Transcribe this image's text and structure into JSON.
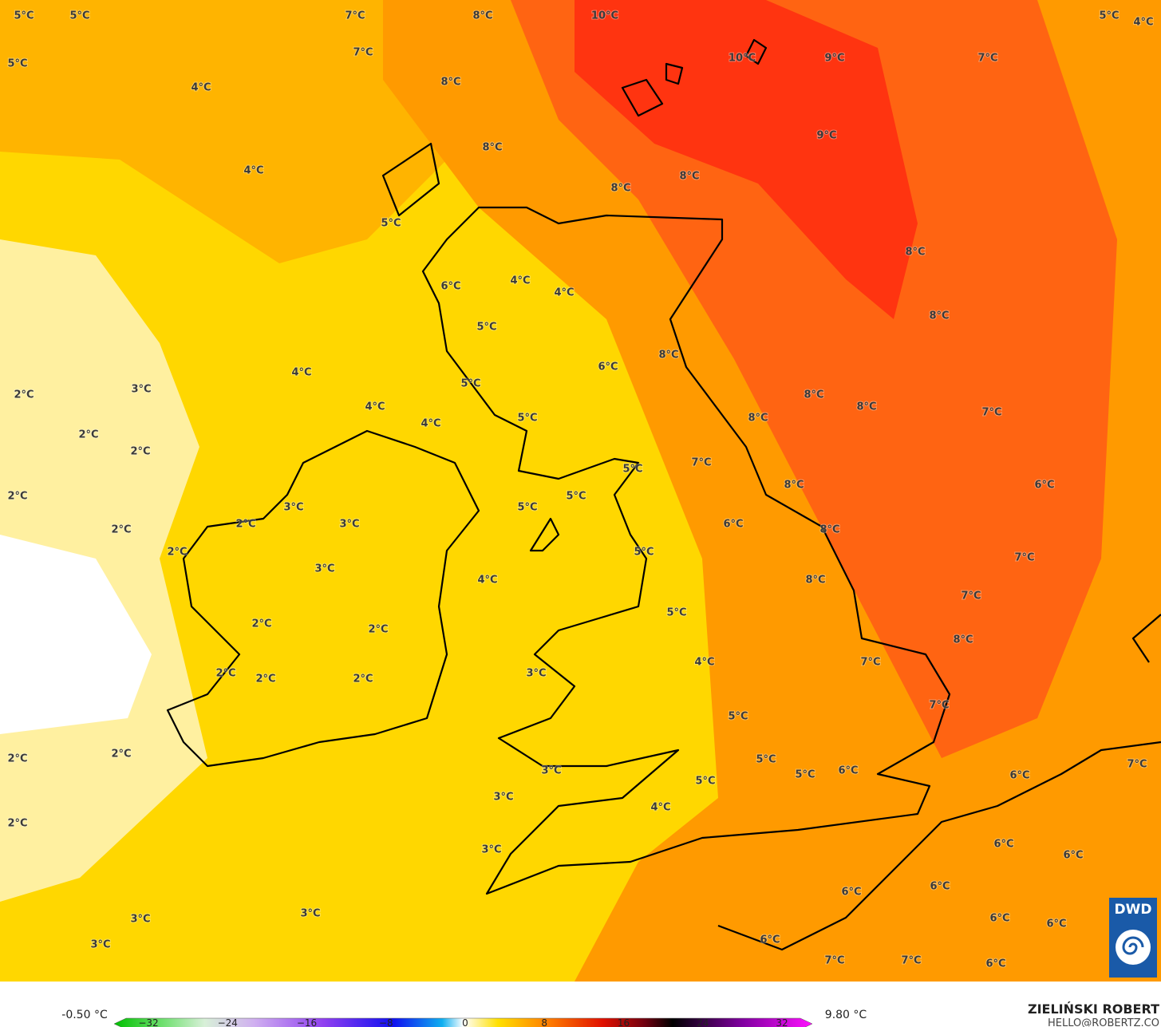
{
  "map": {
    "labels": [
      "5°C",
      "5°C",
      "7°C",
      "8°C",
      "10°C",
      "5°C",
      "4°C",
      "5°C",
      "7°C",
      "10°C",
      "9°C",
      "7°C",
      "4°C",
      "8°C",
      "8°C",
      "9°C",
      "4°C",
      "8°C",
      "8°C",
      "5°C",
      "8°C",
      "6°C",
      "4°C",
      "4°C",
      "8°C",
      "5°C",
      "8°C",
      "6°C",
      "4°C",
      "2°C",
      "3°C",
      "5°C",
      "8°C",
      "4°C",
      "8°C",
      "7°C",
      "8°C",
      "5°C",
      "4°C",
      "2°C",
      "2°C",
      "7°C",
      "5°C",
      "8°C",
      "6°C",
      "2°C",
      "5°C",
      "3°C",
      "5°C",
      "2°C",
      "3°C",
      "6°C",
      "2°C",
      "8°C",
      "2°C",
      "5°C",
      "7°C",
      "3°C",
      "4°C",
      "8°C",
      "7°C",
      "5°C",
      "2°C",
      "2°C",
      "8°C",
      "7°C",
      "4°C",
      "3°C",
      "2°C",
      "2°C",
      "2°C",
      "7°C",
      "5°C",
      "2°C",
      "2°C",
      "5°C",
      "7°C",
      "3°C",
      "5°C",
      "6°C",
      "6°C",
      "5°C",
      "3°C",
      "4°C",
      "2°C",
      "6°C",
      "6°C",
      "3°C",
      "6°C",
      "6°C",
      "3°C",
      "3°C",
      "6°C",
      "6°C",
      "3°C",
      "6°C",
      "7°C",
      "7°C",
      "6°C"
    ]
  },
  "legend": {
    "min_label": "-0.50 °C",
    "max_label": "9.80 °C",
    "ticks": [
      {
        "value": -32,
        "label": "−32"
      },
      {
        "value": -24,
        "label": "−24"
      },
      {
        "value": -16,
        "label": "−16"
      },
      {
        "value": -8,
        "label": "−8"
      },
      0,
      8,
      16,
      24,
      32
    ]
  },
  "credits": {
    "author": "ZIELIŃSKI ROBERT",
    "contact": "HELLO@ROBERTZ.CO",
    "logo": "DWD"
  }
}
